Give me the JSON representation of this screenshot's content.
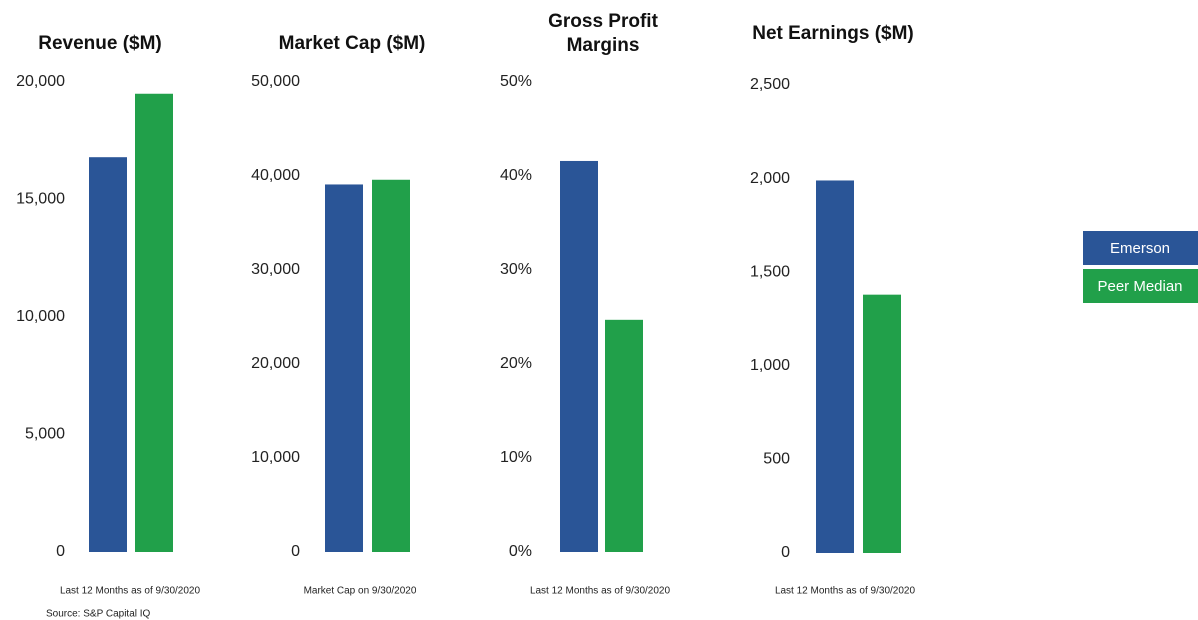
{
  "chart_data": [
    {
      "type": "bar",
      "title": "Revenue ($M)",
      "note": "Last 12 Months as of 9/30/2020",
      "values": [
        16800,
        19500
      ],
      "ylim": [
        0,
        20000
      ],
      "yticks": [
        0,
        {
          "value": 5000,
          "label": "5,000"
        },
        {
          "value": 10000,
          "label": "10,000"
        },
        {
          "value": 15000,
          "label": "15,000"
        },
        {
          "value": 20000,
          "label": "20,000"
        }
      ]
    },
    {
      "type": "bar",
      "title": "Market Cap ($M)",
      "note": "Market Cap on 9/30/2020",
      "values": [
        39100,
        39600
      ],
      "ylim": [
        0,
        50000
      ],
      "yticks": [
        0,
        {
          "value": 10000,
          "label": "10,000"
        },
        {
          "value": 20000,
          "label": "20,000"
        },
        {
          "value": 30000,
          "label": "30,000"
        },
        {
          "value": 40000,
          "label": "40,000"
        },
        {
          "value": 50000,
          "label": "50,000"
        }
      ]
    },
    {
      "type": "bar",
      "title": "Gross Profit Margins",
      "note": "Last 12 Months as of 9/30/2020",
      "values": [
        41.6,
        24.7
      ],
      "ylim": [
        0,
        50
      ],
      "yticks": [
        {
          "value": 0,
          "label": "0%"
        },
        {
          "value": 10,
          "label": "10%"
        },
        {
          "value": 20,
          "label": "20%"
        },
        {
          "value": 30,
          "label": "30%"
        },
        {
          "value": 40,
          "label": "40%"
        },
        {
          "value": 50,
          "label": "50%"
        }
      ]
    },
    {
      "type": "bar",
      "title": "Net Earnings ($M)",
      "note": "Last 12 Months as of 9/30/2020",
      "values": [
        1990,
        1380
      ],
      "ylim": [
        0,
        2500
      ],
      "yticks": [
        0,
        500,
        {
          "value": 1000,
          "label": "1,000"
        },
        {
          "value": 1500,
          "label": "1,500"
        },
        {
          "value": 2000,
          "label": "2,000"
        },
        {
          "value": 2500,
          "label": "2,500"
        }
      ]
    }
  ],
  "legend": {
    "labels": [
      "Emerson",
      "Peer Median"
    ],
    "colors": [
      "#2a5597",
      "#21a04a"
    ]
  },
  "source": "Source: S&P Capital IQ"
}
